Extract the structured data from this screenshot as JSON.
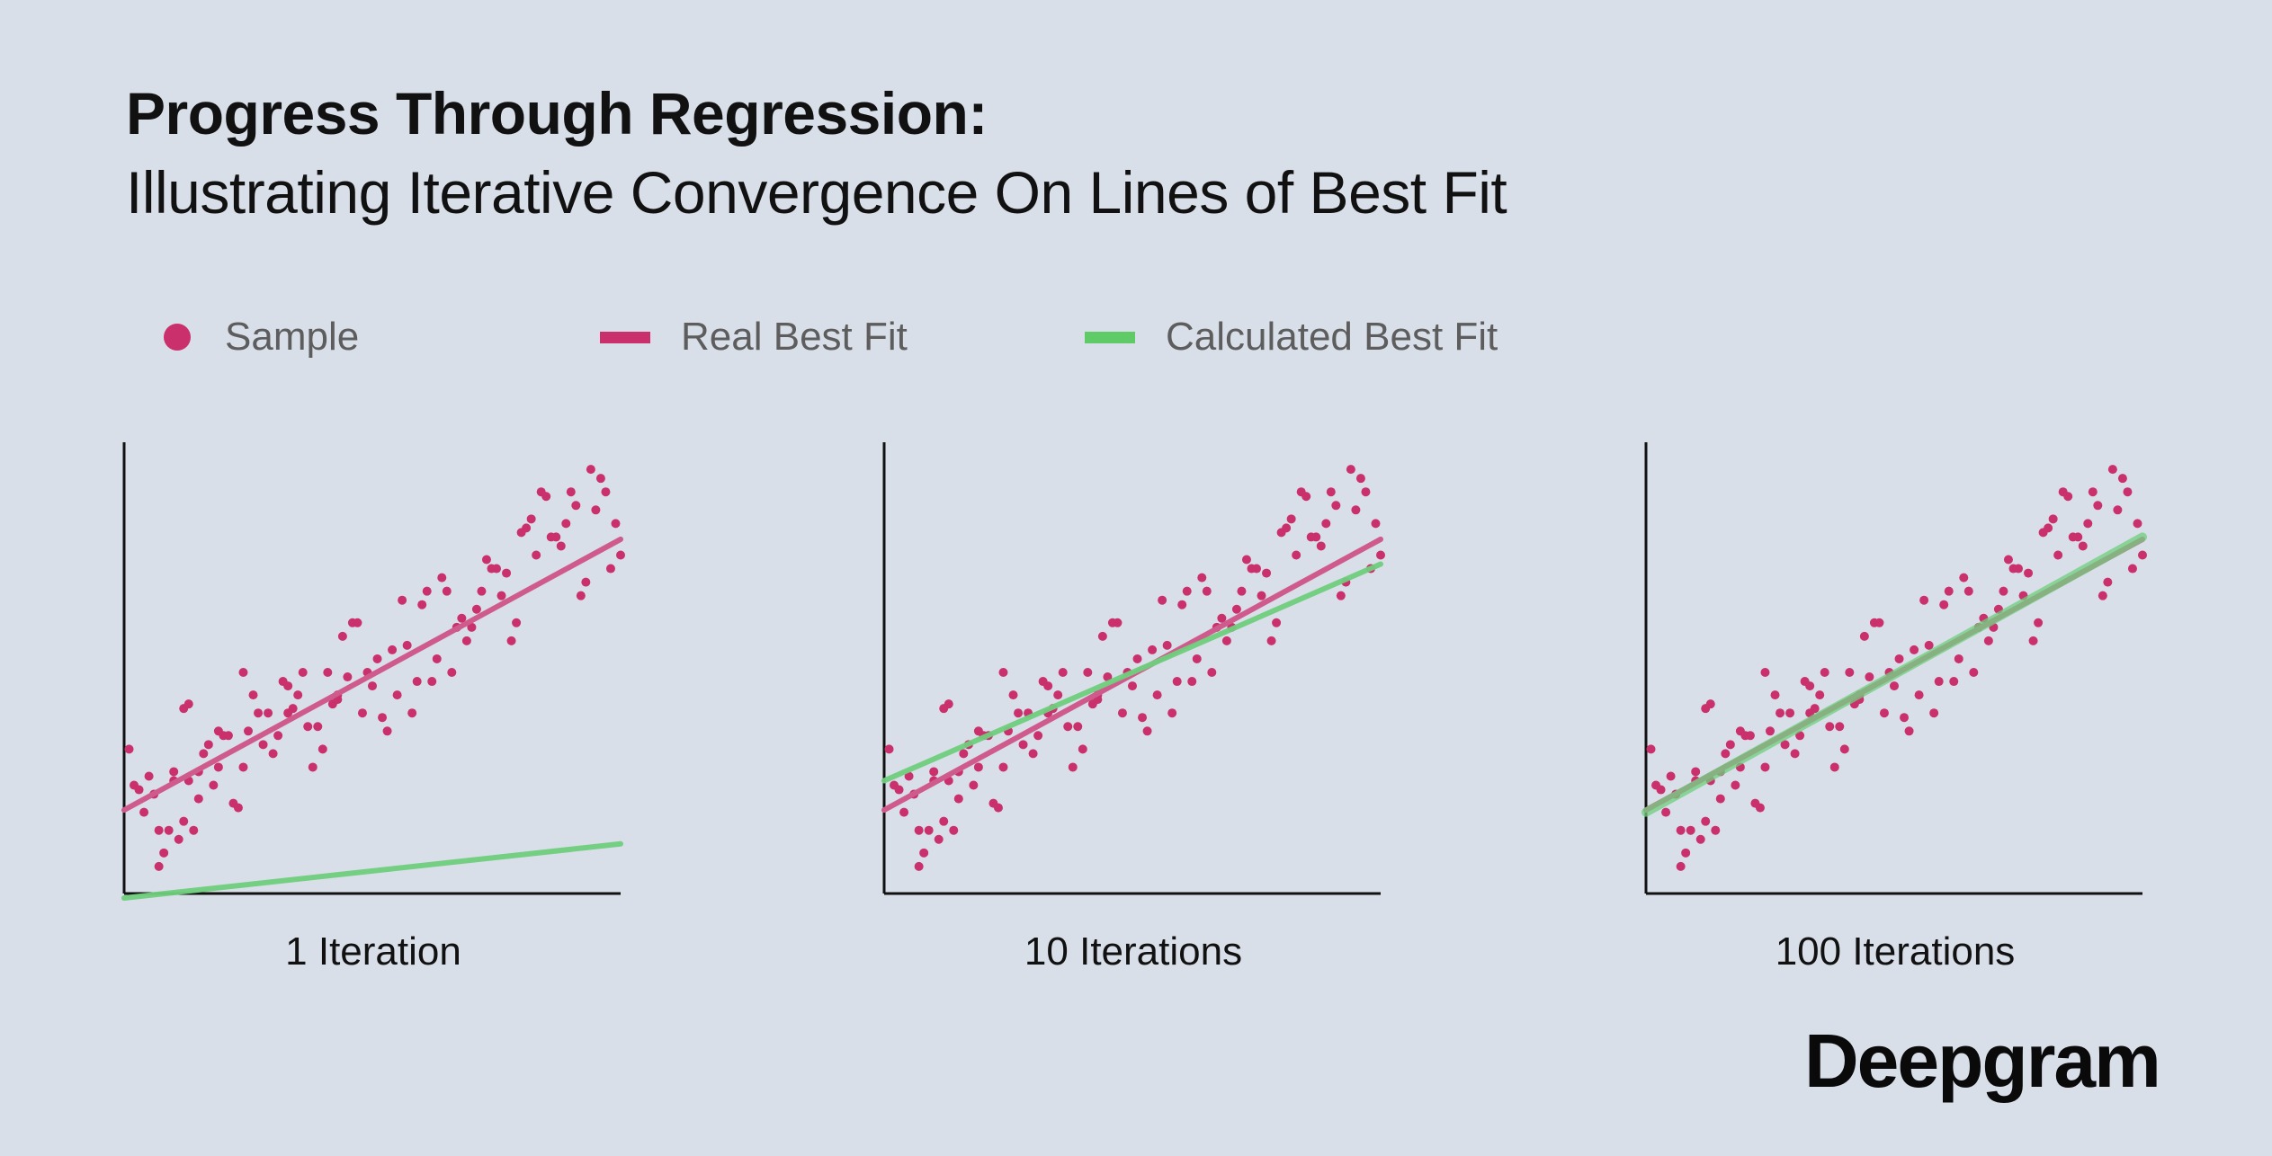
{
  "title": {
    "line1": "Progress Through Regression:",
    "line2": "Illustrating Iterative Convergence On Lines of Best Fit"
  },
  "legend": {
    "sample": "Sample",
    "real": "Real Best Fit",
    "calculated": "Calculated Best Fit"
  },
  "colors": {
    "background": "#d9dfe9",
    "sample": "#c9306c",
    "real_fit": "#cf5a8c",
    "calculated_fit": "#6fcf7d",
    "axis": "#111111"
  },
  "logo": "Deepgram",
  "chart_data": [
    {
      "type": "scatter",
      "title": "",
      "xlabel": "1 Iteration",
      "ylabel": "",
      "xlim": [
        0,
        100
      ],
      "ylim": [
        0,
        100
      ],
      "real_fit": {
        "intercept": 18.5,
        "slope": 0.6
      },
      "calculated_fit": {
        "intercept": -1,
        "slope": 0.12
      }
    },
    {
      "type": "scatter",
      "title": "",
      "xlabel": "10 Iterations",
      "ylabel": "",
      "xlim": [
        0,
        100
      ],
      "ylim": [
        0,
        100
      ],
      "real_fit": {
        "intercept": 18.5,
        "slope": 0.6
      },
      "calculated_fit": {
        "intercept": 25,
        "slope": 0.48
      }
    },
    {
      "type": "scatter",
      "title": "",
      "xlabel": "100 Iterations",
      "ylabel": "",
      "xlim": [
        0,
        100
      ],
      "ylim": [
        0,
        100
      ],
      "real_fit": {
        "intercept": 18.5,
        "slope": 0.6
      },
      "calculated_fit": {
        "intercept": 18,
        "slope": 0.61
      }
    }
  ],
  "samples": {
    "x": [
      1,
      2,
      3,
      4,
      5,
      6,
      7,
      7,
      8,
      9,
      10,
      10,
      11,
      12,
      12,
      13,
      13,
      14,
      15,
      15,
      16,
      17,
      18,
      19,
      19,
      20,
      21,
      22,
      23,
      24,
      24,
      25,
      26,
      27,
      28,
      29,
      30,
      31,
      32,
      33,
      33,
      34,
      35,
      36,
      37,
      38,
      39,
      40,
      41,
      42,
      43,
      43,
      44,
      45,
      46,
      47,
      48,
      49,
      50,
      51,
      52,
      53,
      54,
      55,
      56,
      57,
      58,
      59,
      60,
      61,
      62,
      63,
      64,
      65,
      66,
      67,
      68,
      69,
      70,
      71,
      72,
      73,
      74,
      75,
      76,
      77,
      78,
      79,
      80,
      81,
      82,
      83,
      84,
      85,
      86,
      87,
      88,
      89,
      90,
      91,
      92,
      93,
      94,
      95,
      96,
      97,
      98,
      99,
      100
    ],
    "y": [
      32,
      24,
      23,
      18,
      26,
      22,
      6,
      14,
      9,
      14,
      27,
      25,
      12,
      16,
      41,
      42,
      25,
      14,
      27,
      21,
      31,
      33,
      24,
      28,
      36,
      35,
      35,
      20,
      19,
      49,
      28,
      36,
      44,
      40,
      33,
      40,
      31,
      35,
      47,
      40,
      46,
      41,
      44,
      49,
      37,
      28,
      37,
      32,
      49,
      42,
      43,
      44,
      57,
      48,
      60,
      60,
      40,
      49,
      46,
      52,
      39,
      36,
      54,
      44,
      65,
      55,
      40,
      47,
      64,
      67,
      47,
      52,
      70,
      67,
      49,
      59,
      61,
      56,
      59,
      63,
      67,
      74,
      72,
      72,
      66,
      71,
      56,
      60,
      80,
      81,
      83,
      75,
      89,
      88,
      79,
      79,
      77,
      82,
      89,
      86,
      66,
      69,
      94,
      85,
      92,
      89,
      72,
      82,
      75
    ],
    "note": ""
  },
  "panel_labels": [
    "1 Iteration",
    "10 Iterations",
    "100 Iterations"
  ]
}
